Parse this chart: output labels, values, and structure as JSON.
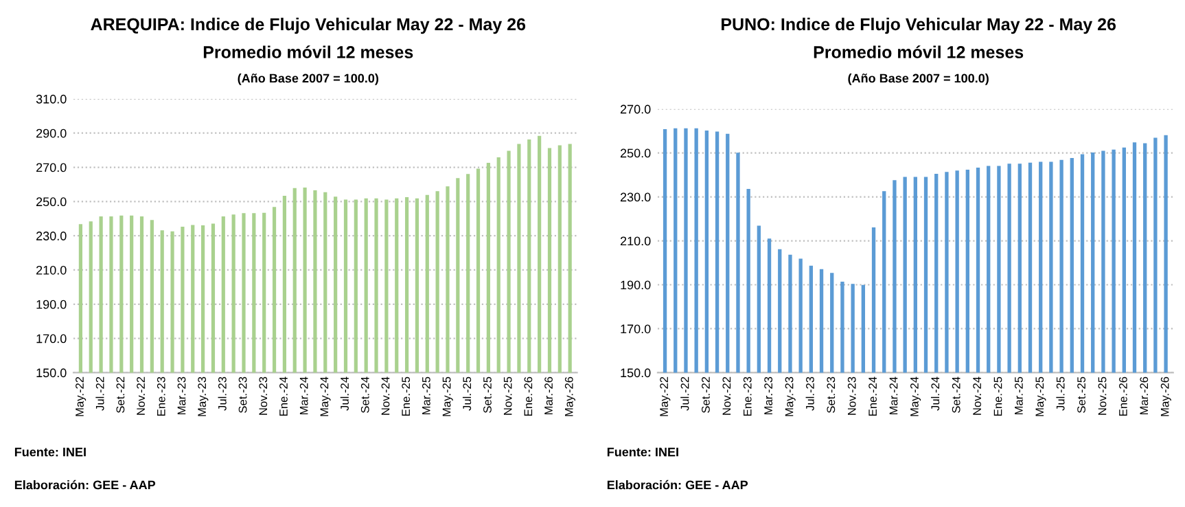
{
  "chart_data": [
    {
      "type": "bar",
      "title": "AREQUIPA: Indice de Flujo Vehicular May 22 - May 26",
      "subtitle": "Promedio móvil 12 meses",
      "annotations": [
        "(Año Base 2007 = 100.0)",
        "Fuente: INEI",
        "Elaboración: GEE - AAP"
      ],
      "categories": [
        "May.-22",
        null,
        "Jul.-22",
        null,
        "Set.-22",
        null,
        "Nov.-22",
        null,
        "Ene.-23",
        null,
        "Mar.-23",
        null,
        "May.-23",
        null,
        "Jul.-23",
        null,
        "Set.-23",
        null,
        "Nov.-23",
        null,
        "Ene.-24",
        null,
        "Mar.-24",
        null,
        "May.-24",
        null,
        "Jul.-24",
        null,
        "Set.-24",
        null,
        "Nov.-24",
        null,
        "Ene.-25",
        null,
        "Mar.-25",
        null,
        "May.-25",
        null,
        "Jul.-25",
        null,
        "Set.-25",
        null,
        "Nov.-25",
        null,
        "Ene.-26",
        null,
        "Mar.-26",
        null,
        "May.-26"
      ],
      "series": [
        {
          "color": "#a9d18e",
          "values": [
            236.8,
            238.4,
            241.3,
            241.3,
            241.8,
            241.8,
            241.3,
            239.2,
            233.2,
            232.6,
            235.3,
            236.3,
            236.1,
            237.1,
            241.3,
            242.4,
            243.2,
            243.2,
            243.4,
            246.8,
            253.4,
            257.9,
            258.2,
            256.6,
            255.5,
            252.9,
            251.1,
            251.1,
            251.8,
            251.8,
            251.1,
            251.8,
            252.6,
            251.8,
            253.9,
            256.1,
            258.9,
            263.7,
            266.1,
            269.2,
            272.6,
            275.8,
            279.7,
            283.7,
            286.3,
            288.4,
            281.3,
            282.9,
            283.7
          ]
        }
      ],
      "ylim": [
        150,
        310
      ],
      "yticks": [
        {
          "value": 150,
          "label": "150.0"
        },
        {
          "value": 170,
          "label": "170.0"
        },
        {
          "value": 190,
          "label": "190.0"
        },
        {
          "value": 210,
          "label": "210.0"
        },
        {
          "value": 230,
          "label": "230.0"
        },
        {
          "value": 250,
          "label": "250.0"
        },
        {
          "value": 270,
          "label": "270.0"
        },
        {
          "value": 290,
          "label": "290.0"
        },
        {
          "value": 310,
          "label": "310.0"
        }
      ],
      "grid": "y",
      "legend": false
    },
    {
      "type": "bar",
      "title": "PUNO: Indice de Flujo Vehicular May 22 - May 26",
      "subtitle": "Promedio móvil 12 meses",
      "annotations": [
        "(Año Base 2007 = 100.0)",
        "Fuente: INEI",
        "Elaboración: GEE - AAP"
      ],
      "categories": [
        "May.-22",
        null,
        "Jul.-22",
        null,
        "Set.-22",
        null,
        "Nov.-22",
        null,
        "Ene.-23",
        null,
        "Mar.-23",
        null,
        "May.-23",
        null,
        "Jul.-23",
        null,
        "Set.-23",
        null,
        "Nov.-23",
        null,
        "Ene.-24",
        null,
        "Mar.-24",
        null,
        "May.-24",
        null,
        "Jul.-24",
        null,
        "Set.-24",
        null,
        "Nov.-24",
        null,
        "Ene.-25",
        null,
        "Mar.-25",
        null,
        "May.-25",
        null,
        "Jul.-25",
        null,
        "Set.-25",
        null,
        "Nov.-25",
        null,
        "Ene.-26",
        null,
        "Mar.-26",
        null,
        "May.-26"
      ],
      "series": [
        {
          "color": "#5b9bd5",
          "values": [
            260.8,
            261.2,
            261.2,
            261.2,
            260.2,
            259.7,
            258.7,
            250.1,
            233.6,
            216.9,
            211.0,
            206.2,
            203.7,
            201.9,
            198.7,
            197.1,
            195.4,
            191.4,
            190.4,
            189.9,
            216.1,
            232.6,
            237.6,
            239.1,
            239.1,
            239.1,
            240.5,
            241.4,
            242.0,
            242.4,
            243.3,
            244.1,
            244.1,
            245.1,
            245.1,
            245.6,
            246.0,
            246.0,
            246.8,
            247.7,
            249.4,
            250.2,
            251.0,
            251.5,
            252.5,
            254.8,
            254.4,
            256.9,
            258.1
          ]
        }
      ],
      "ylim": [
        150,
        270
      ],
      "yticks": [
        {
          "value": 150,
          "label": "150.0"
        },
        {
          "value": 170,
          "label": "170.0"
        },
        {
          "value": 190,
          "label": "190.0"
        },
        {
          "value": 210,
          "label": "210.0"
        },
        {
          "value": 230,
          "label": "230.0"
        },
        {
          "value": 250,
          "label": "250.0"
        },
        {
          "value": 270,
          "label": "270.0"
        }
      ],
      "grid": "y",
      "legend": false
    }
  ]
}
